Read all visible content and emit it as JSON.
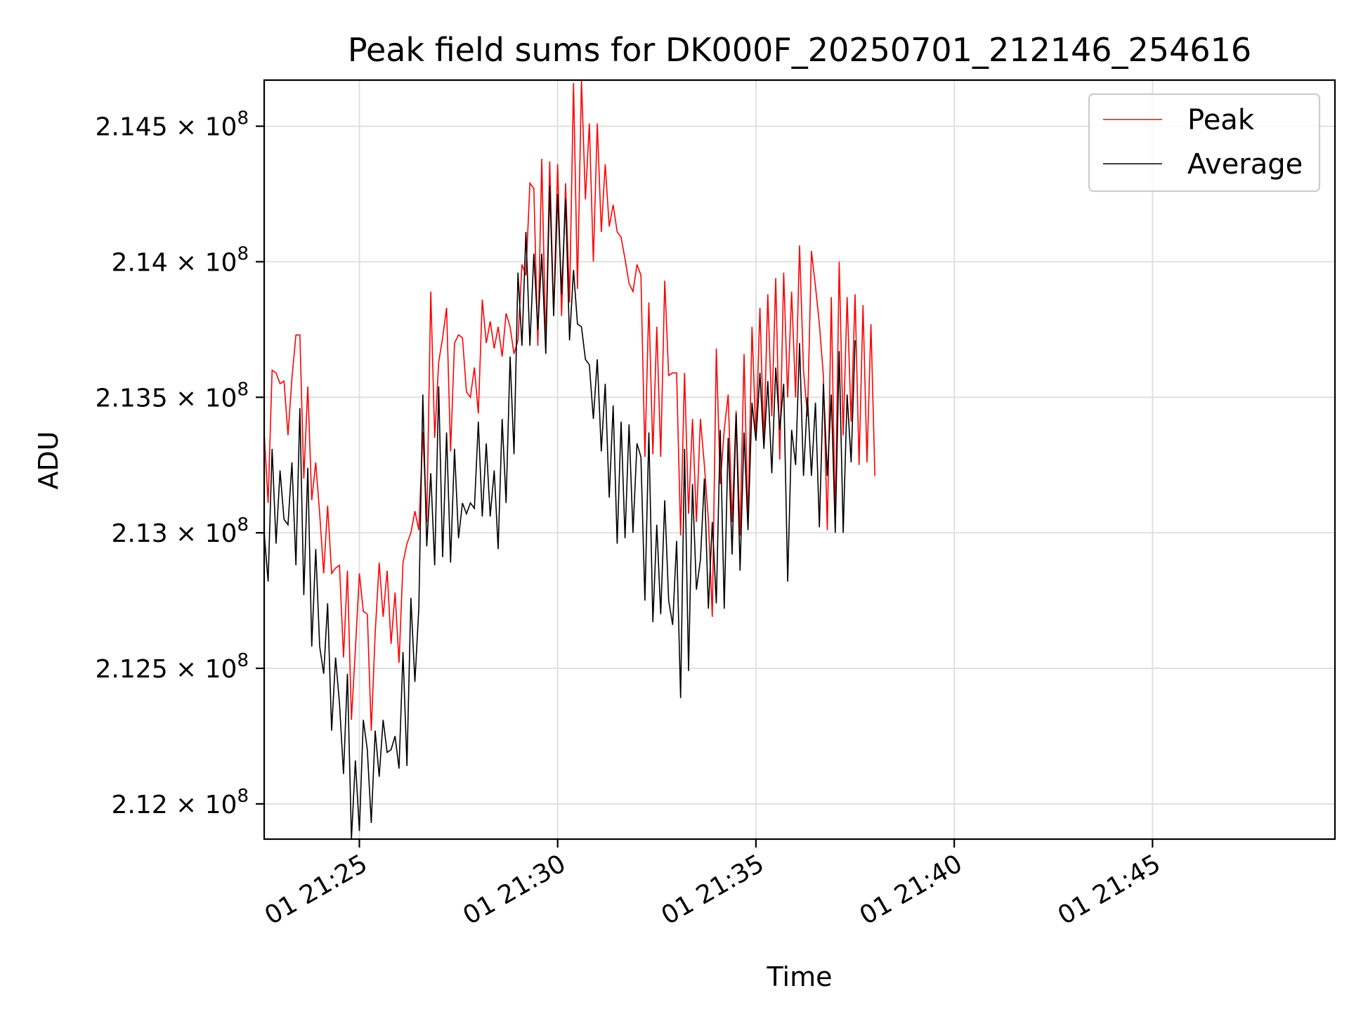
{
  "chart_data": {
    "type": "line",
    "title": "Peak field sums for DK000F_20250701_212146_254616",
    "xlabel": "Time",
    "ylabel": "ADU",
    "xlim": [
      "01 21:22:36",
      "01 21:49:36"
    ],
    "ylim": [
      211.87,
      214.67
    ],
    "y_units_note": "×10^6 (values in millions of ADU)",
    "x_ticks": [
      "01 21:25",
      "01 21:30",
      "01 21:35",
      "01 21:40",
      "01 21:45"
    ],
    "y_ticks": [
      {
        "value": 212.0,
        "mantissa": "2.12"
      },
      {
        "value": 212.5,
        "mantissa": "2.125"
      },
      {
        "value": 213.0,
        "mantissa": "2.13"
      },
      {
        "value": 213.5,
        "mantissa": "2.135"
      },
      {
        "value": 214.0,
        "mantissa": "2.14"
      },
      {
        "value": 214.5,
        "mantissa": "2.145"
      }
    ],
    "y_tick_suffix_base": "× 10",
    "y_tick_suffix_exp": "8",
    "grid": true,
    "legend_position": "top-right",
    "x_start": "01 21:22:36",
    "x_step_seconds": 6,
    "series": [
      {
        "name": "Peak",
        "color": "#ff0000",
        "values": [
          213.37,
          213.11,
          213.6,
          213.59,
          213.55,
          213.56,
          213.36,
          213.57,
          213.73,
          213.73,
          213.2,
          213.54,
          213.12,
          213.26,
          213.07,
          212.85,
          213.1,
          212.85,
          212.87,
          212.88,
          212.54,
          212.86,
          212.31,
          212.57,
          212.85,
          212.71,
          212.7,
          212.27,
          212.63,
          212.89,
          212.69,
          212.86,
          212.59,
          212.78,
          212.52,
          212.89,
          212.96,
          213.0,
          213.08,
          213.01,
          213.37,
          213.04,
          213.89,
          213.35,
          213.63,
          213.72,
          213.83,
          213.3,
          213.7,
          213.73,
          213.72,
          213.52,
          213.5,
          213.61,
          213.44,
          213.86,
          213.7,
          213.78,
          213.68,
          213.76,
          213.65,
          213.81,
          213.76,
          213.66,
          213.71,
          213.99,
          213.95,
          214.29,
          214.27,
          213.69,
          214.38,
          213.68,
          214.37,
          213.8,
          214.36,
          213.8,
          214.29,
          213.85,
          214.66,
          213.9,
          214.67,
          214.23,
          214.51,
          214.0,
          214.51,
          214.11,
          214.36,
          214.13,
          214.21,
          214.11,
          214.09,
          214.01,
          213.92,
          213.89,
          213.99,
          213.95,
          213.28,
          213.85,
          213.29,
          213.76,
          213.28,
          213.93,
          213.58,
          213.59,
          213.59,
          212.99,
          213.59,
          213.07,
          213.42,
          213.04,
          213.42,
          213.25,
          213.05,
          212.69,
          213.68,
          213.18,
          213.38,
          213.51,
          213.04,
          213.45,
          212.99,
          213.66,
          213.03,
          213.76,
          213.35,
          213.83,
          213.33,
          213.88,
          213.43,
          213.94,
          213.27,
          213.96,
          213.5,
          213.89,
          213.5,
          214.06,
          213.6,
          213.43,
          214.04,
          213.91,
          213.77,
          213.58,
          213.01,
          213.87,
          213.04,
          214.0,
          213.36,
          213.87,
          213.41,
          213.88,
          213.25,
          213.84,
          213.26,
          213.77,
          213.21
        ]
      },
      {
        "name": "Average",
        "color": "#000000",
        "values": [
          213.0,
          212.82,
          213.31,
          212.96,
          213.23,
          213.05,
          213.03,
          213.26,
          212.88,
          213.46,
          212.77,
          213.24,
          212.58,
          212.94,
          212.58,
          212.48,
          212.74,
          212.27,
          212.54,
          212.37,
          212.11,
          212.48,
          211.87,
          212.16,
          211.9,
          212.31,
          212.2,
          211.93,
          212.27,
          212.1,
          212.31,
          212.19,
          212.2,
          212.25,
          212.13,
          212.56,
          212.14,
          212.76,
          212.45,
          212.72,
          213.51,
          212.95,
          213.22,
          212.88,
          213.54,
          212.91,
          213.37,
          212.89,
          213.31,
          212.98,
          213.11,
          213.07,
          213.11,
          213.09,
          213.41,
          213.06,
          213.33,
          213.06,
          213.23,
          212.94,
          213.42,
          213.11,
          213.65,
          213.29,
          213.96,
          213.69,
          214.11,
          213.69,
          214.03,
          213.75,
          214.03,
          213.66,
          214.28,
          213.8,
          214.25,
          213.88,
          214.23,
          213.71,
          213.97,
          213.77,
          213.76,
          213.64,
          213.62,
          213.42,
          213.64,
          213.3,
          213.55,
          213.13,
          213.47,
          212.96,
          213.41,
          212.98,
          213.4,
          213.0,
          213.33,
          213.28,
          212.75,
          213.37,
          212.67,
          213.03,
          212.7,
          213.12,
          212.75,
          212.66,
          212.97,
          212.39,
          213.31,
          212.49,
          213.18,
          212.79,
          212.9,
          213.2,
          212.72,
          213.04,
          212.74,
          213.38,
          212.72,
          213.35,
          212.92,
          213.44,
          212.86,
          213.37,
          213.01,
          213.48,
          213.34,
          213.59,
          213.31,
          213.56,
          213.22,
          213.61,
          213.38,
          213.55,
          212.82,
          213.38,
          213.25,
          213.7,
          213.21,
          213.5,
          213.21,
          213.48,
          213.02,
          213.55,
          213.21,
          213.51,
          213.0,
          213.67,
          213.0,
          213.51,
          213.26,
          213.71
        ]
      }
    ]
  }
}
